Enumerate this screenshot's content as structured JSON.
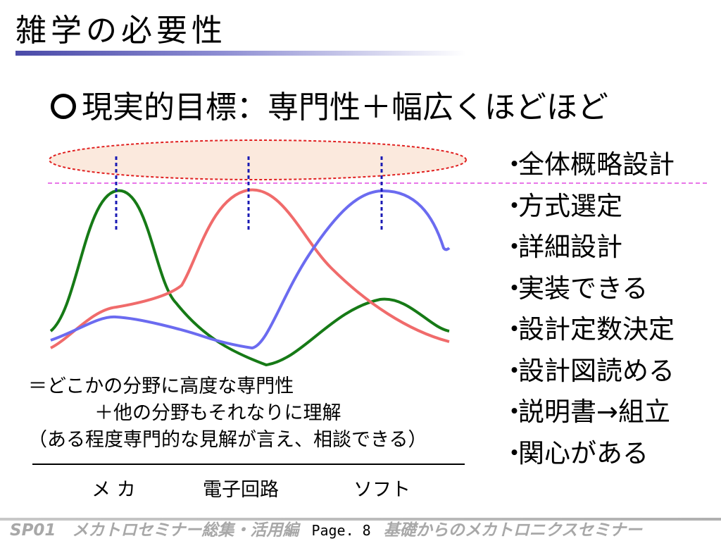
{
  "slide": {
    "title": "雑学の必要性",
    "subtitle": "現実的目標：専門性＋幅広くほどほど",
    "subtitle_icon": "circle-icon"
  },
  "bullets": [
    "全体概略設計",
    "方式選定",
    "詳細設計",
    "実装できる",
    "設計定数決定",
    "設計図読める",
    "説明書→組立",
    "関心がある"
  ],
  "bullet_marker": "・",
  "note": {
    "line1": "＝どこかの分野に高度な専門性",
    "line2": "＋他の分野もそれなりに理解",
    "line3": "（ある程度専門的な見解が言え、相談できる）"
  },
  "chart_labels": {
    "mecha": "メ カ",
    "circuit": "電子回路",
    "software": "ソフト"
  },
  "chart_colors": {
    "mecha": "#167a16",
    "circuit": "#f06b6b",
    "software": "#6b6bf0",
    "peak_marker": "#1a1ab4",
    "threshold_line": "#e048e0",
    "ellipse_stroke": "#e02020",
    "ellipse_fill": "#fbe9dd"
  },
  "footer": {
    "left": "SP01　メカトロセミナー総集・活用編",
    "page": "Page. 8",
    "right": "基礎からのメカトロニクスセミナー"
  }
}
